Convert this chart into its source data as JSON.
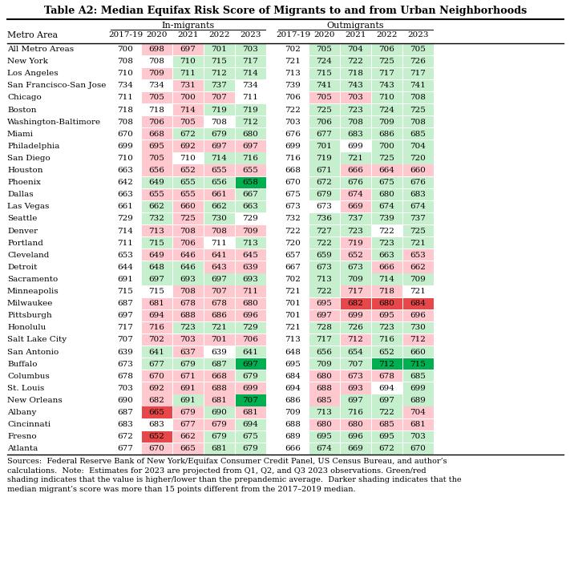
{
  "title": "Table A2: Median Equifax Risk Score of Migrants to and from Urban Neighborhoods",
  "col_years": [
    "2017-19",
    "2020",
    "2021",
    "2022",
    "2023"
  ],
  "rows": [
    {
      "metro": "All Metro Areas",
      "in": [
        700,
        698,
        697,
        701,
        703
      ],
      "out": [
        702,
        705,
        704,
        706,
        705
      ]
    },
    {
      "metro": "New York",
      "in": [
        708,
        708,
        710,
        715,
        717
      ],
      "out": [
        721,
        724,
        722,
        725,
        726
      ]
    },
    {
      "metro": "Los Angeles",
      "in": [
        710,
        709,
        711,
        712,
        714
      ],
      "out": [
        713,
        715,
        718,
        717,
        717
      ]
    },
    {
      "metro": "San Francisco-San Jose",
      "in": [
        734,
        734,
        731,
        737,
        734
      ],
      "out": [
        739,
        741,
        743,
        743,
        741
      ]
    },
    {
      "metro": "Chicago",
      "in": [
        711,
        705,
        700,
        707,
        711
      ],
      "out": [
        706,
        705,
        703,
        710,
        708
      ]
    },
    {
      "metro": "Boston",
      "in": [
        718,
        718,
        714,
        719,
        719
      ],
      "out": [
        722,
        725,
        723,
        724,
        725
      ]
    },
    {
      "metro": "Washington-Baltimore",
      "in": [
        708,
        706,
        705,
        708,
        712
      ],
      "out": [
        703,
        706,
        708,
        709,
        708
      ]
    },
    {
      "metro": "Miami",
      "in": [
        670,
        668,
        672,
        679,
        680
      ],
      "out": [
        676,
        677,
        683,
        686,
        685
      ]
    },
    {
      "metro": "Philadelphia",
      "in": [
        699,
        695,
        692,
        697,
        697
      ],
      "out": [
        699,
        701,
        699,
        700,
        704
      ]
    },
    {
      "metro": "San Diego",
      "in": [
        710,
        705,
        710,
        714,
        716
      ],
      "out": [
        716,
        719,
        721,
        725,
        720
      ]
    },
    {
      "metro": "Houston",
      "in": [
        663,
        656,
        652,
        655,
        655
      ],
      "out": [
        668,
        671,
        666,
        664,
        660
      ]
    },
    {
      "metro": "Phoenix",
      "in": [
        642,
        649,
        655,
        656,
        658
      ],
      "out": [
        670,
        672,
        676,
        675,
        676
      ]
    },
    {
      "metro": "Dallas",
      "in": [
        663,
        655,
        655,
        661,
        667
      ],
      "out": [
        675,
        679,
        674,
        680,
        683
      ]
    },
    {
      "metro": "Las Vegas",
      "in": [
        661,
        662,
        660,
        662,
        663
      ],
      "out": [
        673,
        673,
        669,
        674,
        674
      ]
    },
    {
      "metro": "Seattle",
      "in": [
        729,
        732,
        725,
        730,
        729
      ],
      "out": [
        732,
        736,
        737,
        739,
        737
      ]
    },
    {
      "metro": "Denver",
      "in": [
        714,
        713,
        708,
        708,
        709
      ],
      "out": [
        722,
        727,
        723,
        722,
        725
      ]
    },
    {
      "metro": "Portland",
      "in": [
        711,
        715,
        706,
        711,
        713
      ],
      "out": [
        720,
        722,
        719,
        723,
        721
      ]
    },
    {
      "metro": "Cleveland",
      "in": [
        653,
        649,
        646,
        641,
        645
      ],
      "out": [
        657,
        659,
        652,
        663,
        653
      ]
    },
    {
      "metro": "Detroit",
      "in": [
        644,
        648,
        646,
        643,
        639
      ],
      "out": [
        667,
        673,
        673,
        666,
        662
      ]
    },
    {
      "metro": "Sacramento",
      "in": [
        691,
        697,
        693,
        697,
        693
      ],
      "out": [
        702,
        713,
        709,
        714,
        709
      ]
    },
    {
      "metro": "Minneapolis",
      "in": [
        715,
        715,
        708,
        707,
        711
      ],
      "out": [
        721,
        722,
        717,
        718,
        721
      ]
    },
    {
      "metro": "Milwaukee",
      "in": [
        687,
        681,
        678,
        678,
        680
      ],
      "out": [
        701,
        695,
        682,
        680,
        684
      ]
    },
    {
      "metro": "Pittsburgh",
      "in": [
        697,
        694,
        688,
        686,
        696
      ],
      "out": [
        701,
        697,
        699,
        695,
        696
      ]
    },
    {
      "metro": "Honolulu",
      "in": [
        717,
        716,
        723,
        721,
        729
      ],
      "out": [
        721,
        728,
        726,
        723,
        730
      ]
    },
    {
      "metro": "Salt Lake City",
      "in": [
        707,
        702,
        703,
        701,
        706
      ],
      "out": [
        713,
        717,
        712,
        716,
        712
      ]
    },
    {
      "metro": "San Antonio",
      "in": [
        639,
        641,
        637,
        639,
        641
      ],
      "out": [
        648,
        656,
        654,
        652,
        660
      ]
    },
    {
      "metro": "Buffalo",
      "in": [
        673,
        677,
        679,
        687,
        697
      ],
      "out": [
        695,
        709,
        707,
        712,
        715
      ]
    },
    {
      "metro": "Columbus",
      "in": [
        678,
        670,
        671,
        668,
        679
      ],
      "out": [
        684,
        680,
        673,
        678,
        685
      ]
    },
    {
      "metro": "St. Louis",
      "in": [
        703,
        692,
        691,
        688,
        699
      ],
      "out": [
        694,
        688,
        693,
        694,
        699
      ]
    },
    {
      "metro": "New Orleans",
      "in": [
        690,
        682,
        691,
        681,
        707
      ],
      "out": [
        686,
        685,
        697,
        697,
        689
      ]
    },
    {
      "metro": "Albany",
      "in": [
        687,
        665,
        679,
        690,
        681
      ],
      "out": [
        709,
        713,
        716,
        722,
        704
      ]
    },
    {
      "metro": "Cincinnati",
      "in": [
        683,
        683,
        677,
        679,
        694
      ],
      "out": [
        688,
        680,
        680,
        685,
        681
      ]
    },
    {
      "metro": "Fresno",
      "in": [
        672,
        652,
        662,
        679,
        675
      ],
      "out": [
        689,
        695,
        696,
        695,
        703
      ]
    },
    {
      "metro": "Atlanta",
      "in": [
        677,
        670,
        665,
        681,
        679
      ],
      "out": [
        666,
        674,
        669,
        672,
        670
      ]
    }
  ],
  "light_green": "#c6efce",
  "dark_green": "#00b050",
  "light_red": "#ffc7ce",
  "dark_red": "#e8474a",
  "footnote": "Sources:  Federal Reserve Bank of New York/Equifax Consumer Credit Panel, US Census Bureau, and author’s calculations.  Note:  Estimates for 2023 are projected from Q1, Q2, and Q3 2023 observations. Green/red shading indicates that the value is higher/lower than the prepandemic average.  Darker shading indicates that the median migrant’s score was more than 15 points different from the 2017–2019 median."
}
